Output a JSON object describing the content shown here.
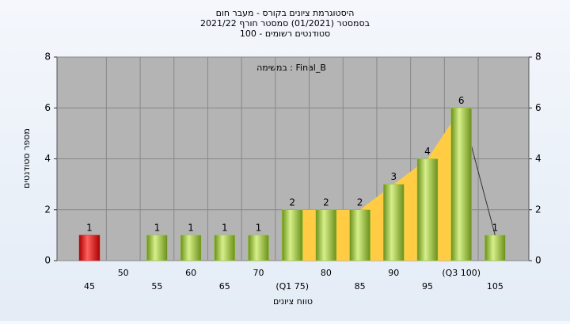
{
  "chart_data": {
    "type": "bar",
    "title": [
      "היסטוגרמת ציונים בקורס - מעבר חום",
      "בסמסטר  (01/2021)  סמסטר חורף 2021/22",
      "סטודנטים רשומים - 100"
    ],
    "annotation": "Final_B : במשימה",
    "x_label": "טווח ציונים",
    "y_label": "מספר סטודנטים",
    "categories": [
      "45",
      "50",
      "55",
      "60",
      "65",
      "70",
      "(Q1 75)",
      "80",
      "85",
      "90",
      "95",
      "(Q3 100)",
      "105"
    ],
    "values": [
      1,
      0,
      1,
      1,
      1,
      1,
      2,
      2,
      2,
      3,
      4,
      6,
      1
    ],
    "colors": [
      "#e02020",
      "#9acd32",
      "#9acd32",
      "#9acd32",
      "#9acd32",
      "#9acd32",
      "#9acd32",
      "#9acd32",
      "#9acd32",
      "#9acd32",
      "#9acd32",
      "#9acd32",
      "#9acd32"
    ],
    "area_color": "#ffcc44",
    "ylim": [
      0,
      8
    ],
    "yticks": [
      0,
      2,
      4,
      6,
      8
    ],
    "grid": true
  }
}
